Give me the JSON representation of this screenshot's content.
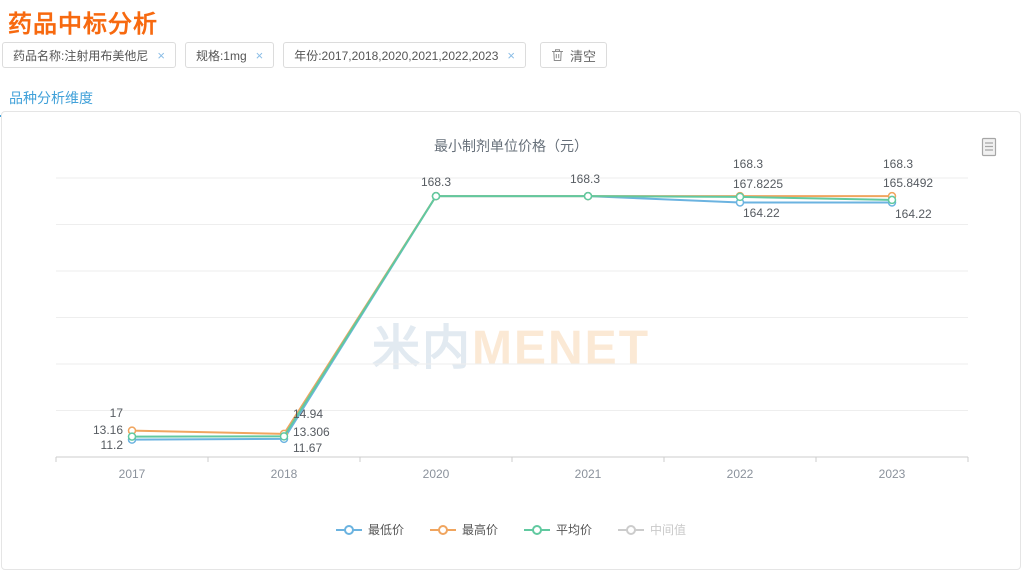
{
  "page": {
    "title": "药品中标分析"
  },
  "filters": {
    "tags": [
      {
        "label": "药品名称:注射用布美他尼"
      },
      {
        "label": "规格:1mg"
      },
      {
        "label": "年份:2017,2018,2020,2021,2022,2023"
      }
    ],
    "close_glyph": "×",
    "clear_label": "清空"
  },
  "tabs": [
    {
      "label": "品种分析维度",
      "active": true
    }
  ],
  "chart_data": {
    "type": "line",
    "title": "最小制剂单位价格（元）",
    "categories": [
      "2017",
      "2018",
      "2020",
      "2021",
      "2022",
      "2023"
    ],
    "series": [
      {
        "name": "最低价",
        "color": "#6bb3e0",
        "visible": true,
        "values": [
          11.2,
          11.67,
          168.3,
          168.3,
          164.22,
          164.22
        ]
      },
      {
        "name": "最高价",
        "color": "#f0a55f",
        "visible": true,
        "values": [
          17,
          14.94,
          168.3,
          168.3,
          168.3,
          168.3
        ]
      },
      {
        "name": "平均价",
        "color": "#61c9a0",
        "visible": true,
        "values": [
          13.16,
          13.306,
          168.3,
          168.3,
          167.8225,
          165.8492
        ]
      },
      {
        "name": "中间值",
        "color": "#cccccc",
        "visible": false,
        "values": []
      }
    ],
    "ylim": [
      0,
      180
    ],
    "y_interval": 30,
    "y_axis_labels_shown": false,
    "grid": true,
    "legend_position": "bottom",
    "point_labels_shown": true
  },
  "watermark": {
    "cn": "米内",
    "en": "MENET"
  },
  "colors": {
    "accent_orange": "#f7690f",
    "accent_blue": "#41a1d9",
    "axis_line": "#cccccc",
    "grid_line": "#eeeeee",
    "axis_label": "#8b929c",
    "data_label": "#565b61"
  }
}
